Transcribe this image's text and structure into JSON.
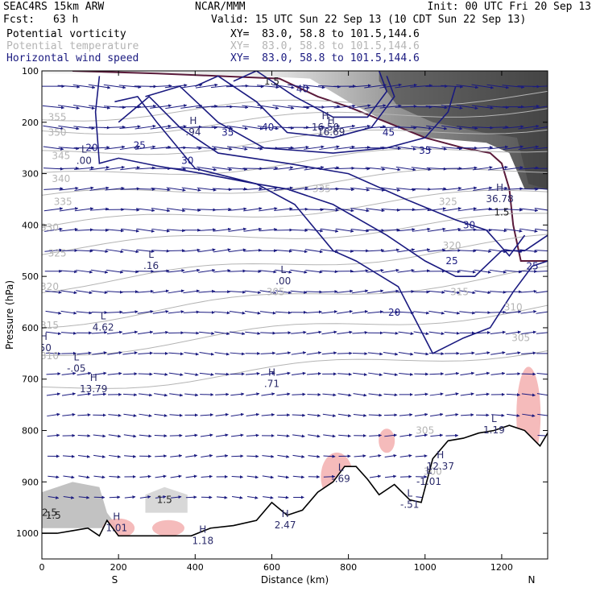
{
  "header": {
    "model": "SEAC4RS 15km ARW",
    "org": "NCAR/MMM",
    "init": "Init: 00 UTC Fri 20 Sep 13",
    "fcst_label": "Fcst:",
    "fcst_value": "63 h",
    "valid": "Valid: 15 UTC Sun 22 Sep 13 (10 CDT Sun 22 Sep 13)",
    "fields": [
      {
        "name": "Potential vorticity",
        "xy": "XY=  83.0, 58.8 to 101.5,144.6",
        "color": "#000000"
      },
      {
        "name": "Potential temperature",
        "xy": "XY=  83.0, 58.8 to 101.5,144.6",
        "color": "#b4b4b4"
      },
      {
        "name": "Horizontal wind speed",
        "xy": "XY=  83.0, 58.8 to 101.5,144.6",
        "color": "#1a1a80"
      }
    ]
  },
  "colors": {
    "theta": "#b4b4b4",
    "wind_speed": "#1a1a80",
    "arrows": "#1a1a80",
    "pv_shade_dark": "#3c3c3c",
    "pv_shade_light": "#d2d2d2",
    "negative_pv": "#f4b4b4",
    "tropopause": "#5a1a3a",
    "terrain": "#000000"
  },
  "chart_data": {
    "type": "cross-section",
    "xlabel": "Distance (km)",
    "ylabel": "Pressure (hPa)",
    "xlim": [
      0,
      1320
    ],
    "ylim": [
      1050,
      100
    ],
    "x_ticks": [
      0,
      200,
      400,
      600,
      800,
      1000,
      1200
    ],
    "y_ticks": [
      100,
      200,
      300,
      400,
      500,
      600,
      700,
      800,
      900,
      1000
    ],
    "endpoint_labels": {
      "left": "S",
      "right": "N"
    },
    "terrain_surface": {
      "x": [
        0,
        40,
        80,
        120,
        150,
        170,
        200,
        240,
        300,
        350,
        390,
        440,
        500,
        560,
        600,
        640,
        680,
        720,
        760,
        790,
        820,
        850,
        880,
        920,
        960,
        990,
        1020,
        1060,
        1100,
        1140,
        1180,
        1220,
        1260,
        1300,
        1320
      ],
      "p": [
        1000,
        1000,
        995,
        990,
        1005,
        975,
        1005,
        1005,
        1005,
        1005,
        1005,
        990,
        985,
        975,
        940,
        965,
        955,
        920,
        900,
        870,
        870,
        895,
        925,
        905,
        935,
        940,
        855,
        820,
        815,
        805,
        800,
        790,
        800,
        830,
        805
      ]
    },
    "theta_contours": [
      {
        "value": 355,
        "p_left": 190,
        "p_right": 145
      },
      {
        "value": 350,
        "p_left": 220,
        "p_right": 170
      },
      {
        "value": 345,
        "p_left": 265,
        "p_right": 205
      },
      {
        "value": 340,
        "p_left": 310,
        "p_right": 245
      },
      {
        "value": 335,
        "p_left": 350,
        "p_right": 290
      },
      {
        "value": 330,
        "p_left": 405,
        "p_right": 335
      },
      {
        "value": 325,
        "p_left": 450,
        "p_right": 385
      },
      {
        "value": 320,
        "p_left": 520,
        "p_right": 430
      },
      {
        "value": 315,
        "p_left": 590,
        "p_right": 490
      },
      {
        "value": 310,
        "p_left": 650,
        "p_right": 560
      },
      {
        "value": 305,
        "p_left": 720,
        "p_right": 640
      }
    ],
    "theta_labels": [
      {
        "text": "355",
        "x": 40,
        "p": 190
      },
      {
        "text": "350",
        "x": 40,
        "p": 220
      },
      {
        "text": "345",
        "x": 50,
        "p": 265
      },
      {
        "text": "340",
        "x": 50,
        "p": 310
      },
      {
        "text": "335",
        "x": 55,
        "p": 355
      },
      {
        "text": "330",
        "x": 20,
        "p": 405
      },
      {
        "text": "325",
        "x": 40,
        "p": 455
      },
      {
        "text": "320",
        "x": 20,
        "p": 520
      },
      {
        "text": "315",
        "x": 20,
        "p": 595
      },
      {
        "text": "310",
        "x": 20,
        "p": 655
      },
      {
        "text": "305",
        "x": 610,
        "p": 530
      },
      {
        "text": "325",
        "x": 1060,
        "p": 355
      },
      {
        "text": "320",
        "x": 1070,
        "p": 440
      },
      {
        "text": "315",
        "x": 1090,
        "p": 530
      },
      {
        "text": "310",
        "x": 1230,
        "p": 560
      },
      {
        "text": "305",
        "x": 1250,
        "p": 620
      },
      {
        "text": "305",
        "x": 1000,
        "p": 800
      },
      {
        "text": "300",
        "x": 1020,
        "p": 880
      },
      {
        "text": "335",
        "x": 730,
        "p": 330
      }
    ],
    "wind_speed_contours": [
      {
        "value": 20,
        "points": [
          [
            150,
            110
          ],
          [
            140,
            180
          ],
          [
            150,
            280
          ],
          [
            200,
            270
          ],
          [
            300,
            285
          ],
          [
            420,
            300
          ],
          [
            560,
            320
          ],
          [
            660,
            360
          ],
          [
            760,
            450
          ],
          [
            820,
            470
          ],
          [
            930,
            520
          ],
          [
            1020,
            650
          ],
          [
            1100,
            620
          ],
          [
            1170,
            600
          ],
          [
            1230,
            530
          ],
          [
            1280,
            480
          ],
          [
            1320,
            470
          ]
        ]
      },
      {
        "value": 25,
        "points": [
          [
            190,
            160
          ],
          [
            250,
            150
          ],
          [
            300,
            200
          ],
          [
            400,
            290
          ],
          [
            560,
            320
          ],
          [
            640,
            330
          ],
          [
            760,
            360
          ],
          [
            900,
            420
          ],
          [
            1000,
            470
          ],
          [
            1080,
            500
          ],
          [
            1130,
            500
          ],
          [
            1200,
            450
          ],
          [
            1260,
            450
          ],
          [
            1320,
            420
          ]
        ]
      },
      {
        "value": 30,
        "points": [
          [
            200,
            200
          ],
          [
            280,
            150
          ],
          [
            360,
            210
          ],
          [
            460,
            260
          ],
          [
            640,
            280
          ],
          [
            800,
            300
          ],
          [
            950,
            350
          ],
          [
            1080,
            390
          ],
          [
            1160,
            410
          ],
          [
            1220,
            460
          ],
          [
            1260,
            420
          ]
        ]
      },
      {
        "value": 35,
        "points": [
          [
            270,
            150
          ],
          [
            360,
            130
          ],
          [
            460,
            200
          ],
          [
            580,
            250
          ],
          [
            760,
            260
          ],
          [
            900,
            250
          ],
          [
            1000,
            230
          ],
          [
            1060,
            180
          ],
          [
            1080,
            130
          ]
        ]
      },
      {
        "value": 40,
        "points": [
          [
            400,
            130
          ],
          [
            460,
            110
          ],
          [
            560,
            160
          ],
          [
            640,
            220
          ],
          [
            760,
            230
          ],
          [
            860,
            210
          ],
          [
            920,
            150
          ],
          [
            900,
            110
          ]
        ]
      },
      {
        "value": 45,
        "points": [
          [
            500,
            120
          ],
          [
            560,
            100
          ],
          [
            660,
            150
          ],
          [
            760,
            190
          ],
          [
            850,
            190
          ],
          [
            900,
            140
          ],
          [
            880,
            100
          ]
        ]
      }
    ],
    "wind_speed_labels": [
      {
        "text": "20",
        "x": 130,
        "p": 250
      },
      {
        "text": "25",
        "x": 255,
        "p": 245
      },
      {
        "text": "30",
        "x": 380,
        "p": 275
      },
      {
        "text": "35",
        "x": 485,
        "p": 220
      },
      {
        "text": "40",
        "x": 590,
        "p": 210
      },
      {
        "text": "45",
        "x": 905,
        "p": 220
      },
      {
        "text": "35",
        "x": 1000,
        "p": 255
      },
      {
        "text": "40",
        "x": 680,
        "p": 135
      },
      {
        "text": "30",
        "x": 1115,
        "p": 400
      },
      {
        "text": "25",
        "x": 1070,
        "p": 470
      },
      {
        "text": "20",
        "x": 920,
        "p": 570
      },
      {
        "text": "25",
        "x": 1280,
        "p": 480
      }
    ],
    "pv_labels": [
      {
        "text": "1.5",
        "x": 600,
        "p": 120
      },
      {
        "text": "1.5",
        "x": 1200,
        "p": 375
      },
      {
        "text": "1.5",
        "x": 320,
        "p": 935
      },
      {
        "text": "1.5",
        "x": 30,
        "p": 965
      },
      {
        "text": "2.5",
        "x": 20,
        "p": 960
      }
    ],
    "extrema": [
      {
        "type": "H",
        "value": "16.50",
        "x": 740,
        "p": 200
      },
      {
        "type": "H",
        "value": "16.69",
        "x": 755,
        "p": 210
      },
      {
        "type": "H",
        "value": "36.78",
        "x": 1195,
        "p": 340
      },
      {
        "type": "H",
        "value": ".94",
        "x": 395,
        "p": 210
      },
      {
        "type": "L",
        "value": ".00",
        "x": 110,
        "p": 265
      },
      {
        "type": "L",
        "value": ".16",
        "x": 285,
        "p": 470
      },
      {
        "type": "L",
        "value": ".00",
        "x": 630,
        "p": 500
      },
      {
        "type": "L",
        "value": "4.62",
        "x": 160,
        "p": 590
      },
      {
        "type": "L",
        "value": "-.05",
        "x": 90,
        "p": 670
      },
      {
        "type": "H",
        "value": "13.79",
        "x": 135,
        "p": 710
      },
      {
        "type": "H",
        "value": ".71",
        "x": 600,
        "p": 700
      },
      {
        "type": "L",
        "value": "1.19",
        "x": 1180,
        "p": 790
      },
      {
        "type": "H",
        "value": "12.37",
        "x": 1040,
        "p": 860
      },
      {
        "type": "L",
        "value": "-1.01",
        "x": 1010,
        "p": 890
      },
      {
        "type": "L",
        "value": "-.69",
        "x": 780,
        "p": 885
      },
      {
        "type": "L",
        "value": "-.51",
        "x": 960,
        "p": 935
      },
      {
        "type": "H",
        "value": "2.47",
        "x": 635,
        "p": 975
      },
      {
        "type": "H",
        "value": "1.01",
        "x": 195,
        "p": 980
      },
      {
        "type": "H",
        "value": "1.18",
        "x": 420,
        "p": 1005
      },
      {
        "type": "H",
        "value": ".50",
        "x": 5,
        "p": 630
      }
    ],
    "wind_arrows": {
      "rows_p": [
        130,
        170,
        210,
        250,
        290,
        330,
        370,
        410,
        450,
        490,
        530,
        570,
        610,
        650,
        690,
        730,
        770,
        810,
        850,
        890,
        930
      ],
      "cols_x": [
        30,
        70,
        110,
        150,
        190,
        230,
        270,
        310,
        350,
        390,
        430,
        470,
        510,
        550,
        590,
        630,
        670,
        710,
        750,
        790,
        830,
        870,
        910,
        950,
        990,
        1030,
        1070,
        1110,
        1150,
        1190,
        1230,
        1270,
        1310
      ]
    }
  }
}
